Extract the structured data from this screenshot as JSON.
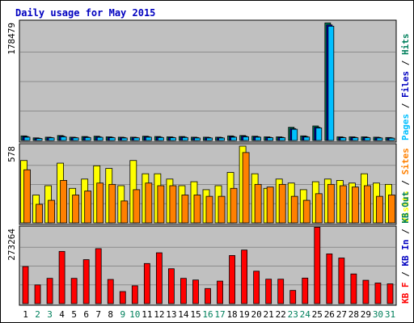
{
  "chart_data": {
    "type": "bar",
    "title": "Daily usage for May 2015",
    "categories": [
      "1",
      "2",
      "3",
      "4",
      "5",
      "6",
      "7",
      "8",
      "9",
      "10",
      "11",
      "12",
      "13",
      "14",
      "15",
      "16",
      "17",
      "18",
      "19",
      "20",
      "21",
      "22",
      "23",
      "24",
      "25",
      "26",
      "27",
      "28",
      "29",
      "30",
      "31"
    ],
    "weekend_days": [
      "2",
      "3",
      "9",
      "10",
      "16",
      "17",
      "23",
      "24",
      "30",
      "31"
    ],
    "weekend_color": "#00805c",
    "weekday_color": "#000000",
    "background_color": "#c0c0c0",
    "panels": [
      {
        "id": "hits",
        "max_label": "178479",
        "ymax": 178479,
        "side_labels": [
          {
            "text": "Pages",
            "color": "#00bfff"
          },
          {
            "text": " / ",
            "color": "#000000"
          },
          {
            "text": "Files",
            "color": "#0000c0"
          },
          {
            "text": " / ",
            "color": "#000000"
          },
          {
            "text": "Hits",
            "color": "#00805c"
          }
        ],
        "series": [
          {
            "name": "Hits",
            "color": "#00805c",
            "values": [
              7000,
              4000,
              5000,
              7500,
              5000,
              6000,
              6500,
              5500,
              5000,
              5000,
              6500,
              6000,
              5500,
              6000,
              5000,
              5000,
              5000,
              7000,
              7500,
              6500,
              5500,
              5500,
              20000,
              7000,
              22000,
              178000,
              5500,
              5500,
              5500,
              5000,
              4500
            ]
          },
          {
            "name": "Files",
            "color": "#0000c0",
            "values": [
              6000,
              3500,
              4500,
              6500,
              4500,
              5200,
              5500,
              4800,
              4500,
              4500,
              5800,
              5200,
              4800,
              5200,
              4500,
              4500,
              4500,
              6000,
              6500,
              5800,
              4800,
              4800,
              18000,
              6000,
              20000,
              175000,
              4800,
              4800,
              4800,
              4500,
              4000
            ]
          },
          {
            "name": "Pages",
            "color": "#00bfff",
            "values": [
              5000,
              3000,
              4000,
              5500,
              4000,
              4500,
              4800,
              4200,
              3800,
              4000,
              5000,
              4500,
              4200,
              4500,
              3800,
              3800,
              3800,
              5000,
              5500,
              5000,
              4200,
              4200,
              17000,
              5200,
              19000,
              173000,
              4200,
              4200,
              4200,
              3800,
              3500
            ]
          }
        ]
      },
      {
        "id": "visits",
        "max_label": "578",
        "ymax": 578,
        "side_labels": [
          {
            "text": "Visits",
            "color": "#ffff00"
          },
          {
            "text": " / ",
            "color": "#000000"
          },
          {
            "text": "Sites",
            "color": "#ff8000"
          }
        ],
        "series": [
          {
            "name": "Visits",
            "color": "#ffff00",
            "values": [
              470,
              210,
              280,
              450,
              260,
              330,
              430,
              410,
              280,
              470,
              370,
              370,
              330,
              280,
              310,
              250,
              280,
              380,
              578,
              370,
              260,
              330,
              300,
              250,
              310,
              330,
              320,
              300,
              370,
              300,
              290
            ]
          },
          {
            "name": "Sites",
            "color": "#ff8000",
            "values": [
              400,
              140,
              170,
              320,
              210,
              240,
              300,
              290,
              165,
              250,
              300,
              280,
              280,
              210,
              210,
              200,
              200,
              260,
              530,
              290,
              270,
              290,
              200,
              170,
              220,
              290,
              280,
              270,
              280,
              200,
              210
            ]
          }
        ]
      },
      {
        "id": "kbytes",
        "max_label": "273264",
        "ymax": 273264,
        "side_labels": [
          {
            "text": "KB F",
            "color": "#ff0000"
          },
          {
            "text": " / ",
            "color": "#000000"
          },
          {
            "text": "KB In",
            "color": "#0000c0"
          },
          {
            "text": " / ",
            "color": "#000000"
          },
          {
            "text": "KB Out",
            "color": "#00805c"
          }
        ],
        "series": [
          {
            "name": "KB F",
            "color": "#ff0000",
            "values": [
              135000,
              68000,
              92000,
              190000,
              92000,
              160000,
              200000,
              88000,
              44000,
              65000,
              146000,
              185000,
              127000,
              92000,
              86000,
              55000,
              82000,
              175000,
              195000,
              118000,
              89000,
              89000,
              48000,
              93000,
              278000,
              181000,
              166000,
              108000,
              85000,
              75000,
              72000
            ]
          }
        ]
      }
    ]
  }
}
